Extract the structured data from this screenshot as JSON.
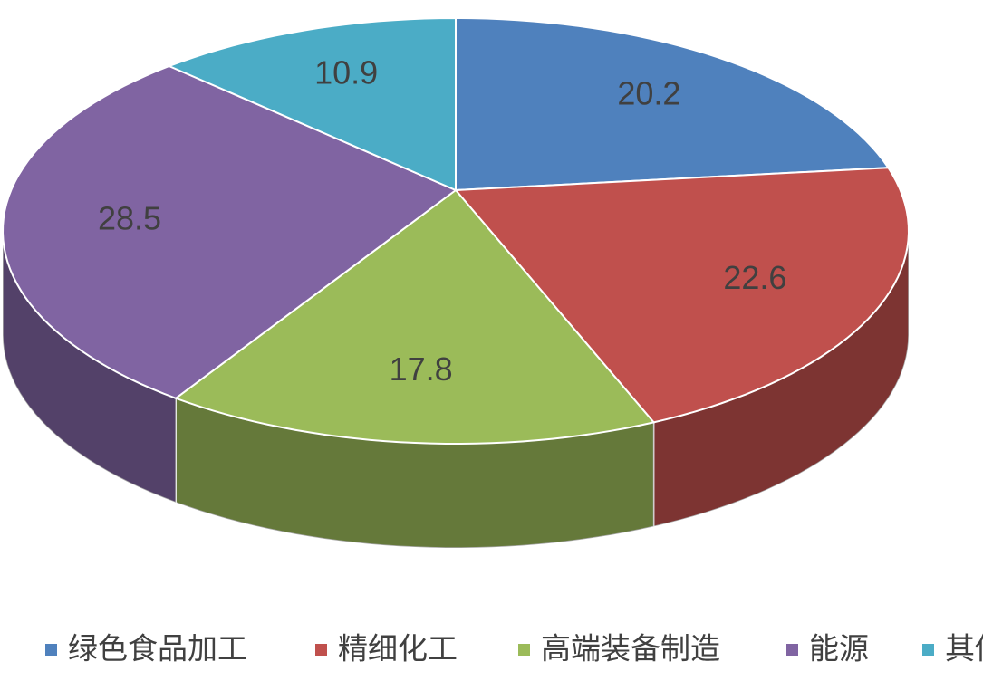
{
  "chart_data": {
    "type": "pie",
    "categories": [
      "绿色食品加工",
      "精细化工",
      "高端装备制造",
      "能源",
      "其他"
    ],
    "values": [
      20.2,
      22.6,
      17.8,
      28.5,
      10.9
    ],
    "colors": [
      "#4f81bd",
      "#c0504d",
      "#9bbb59",
      "#8064a2",
      "#4bacc6"
    ],
    "legend": "bottom"
  }
}
